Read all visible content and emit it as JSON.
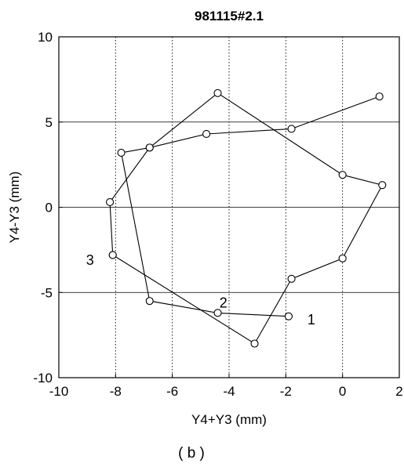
{
  "chart_data": {
    "type": "line",
    "title": "981115#2.1",
    "xlabel": "Y4+Y3 (mm)",
    "ylabel": "Y4-Y3 (mm)",
    "xlim": [
      -10,
      2
    ],
    "ylim": [
      -10,
      10
    ],
    "xticks": [
      -10,
      -8,
      -6,
      -4,
      -2,
      0,
      2
    ],
    "yticks": [
      -10,
      -5,
      0,
      5,
      10
    ],
    "xtick_labels": [
      "-10",
      "-8",
      "-6",
      "-4",
      "-2",
      "0",
      "2"
    ],
    "ytick_labels": [
      "-10",
      "-5",
      "0",
      "5",
      "10"
    ],
    "grid": {
      "x": "dotted vertical",
      "y": "solid horizontal"
    },
    "series": [
      {
        "marker": "open circle",
        "points": [
          {
            "x": -1.9,
            "y": -6.4
          },
          {
            "x": -4.4,
            "y": -6.2
          },
          {
            "x": -6.8,
            "y": -5.5
          },
          {
            "x": -7.8,
            "y": 3.2
          },
          {
            "x": -6.8,
            "y": 3.5
          },
          {
            "x": -4.8,
            "y": 4.3
          },
          {
            "x": -1.8,
            "y": 4.6
          },
          {
            "x": 1.3,
            "y": 6.5
          }
        ]
      },
      {
        "marker": "open circle",
        "points": [
          {
            "x": -8.1,
            "y": -2.8
          },
          {
            "x": -3.1,
            "y": -8.0
          },
          {
            "x": -1.8,
            "y": -4.2
          },
          {
            "x": 0.0,
            "y": -3.0
          },
          {
            "x": 1.4,
            "y": 1.3
          },
          {
            "x": 0.0,
            "y": 1.9
          },
          {
            "x": -4.4,
            "y": 6.7
          },
          {
            "x": -6.8,
            "y": 3.5
          },
          {
            "x": -8.2,
            "y": 0.3
          },
          {
            "x": -8.1,
            "y": -2.8
          }
        ]
      }
    ],
    "annotations": [
      {
        "text": "1",
        "x": -1.1,
        "y": -6.6
      },
      {
        "text": "2",
        "x": -4.2,
        "y": -5.6
      },
      {
        "text": "3",
        "x": -8.9,
        "y": -3.1
      }
    ]
  },
  "caption": "( b )"
}
